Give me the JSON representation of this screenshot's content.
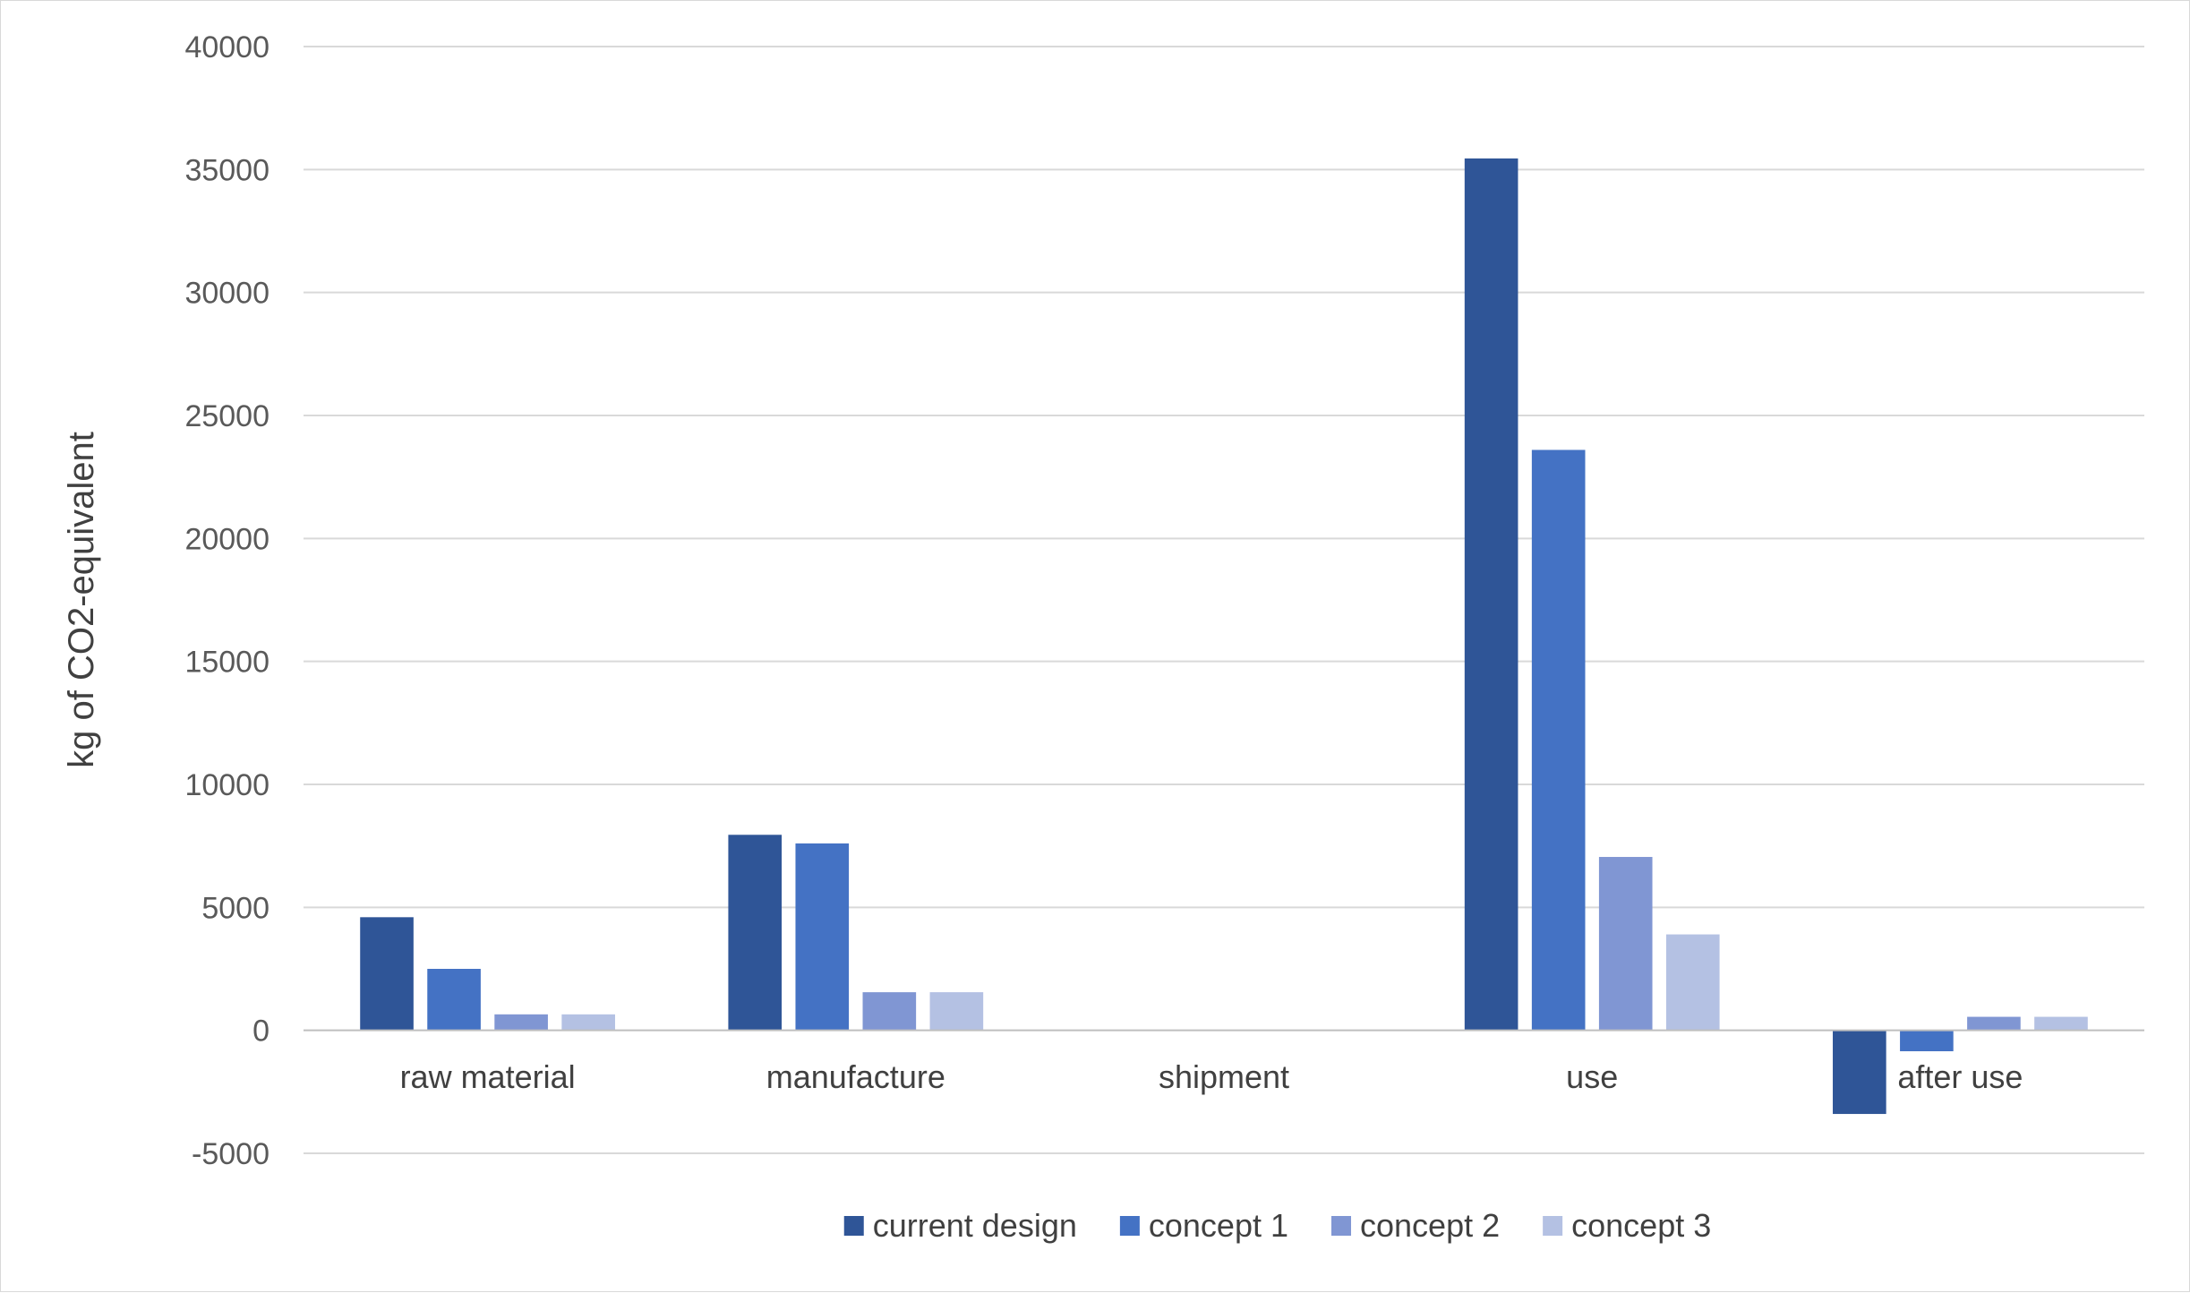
{
  "chart_data": {
    "type": "bar",
    "title": "",
    "xlabel": "",
    "ylabel": "kg of CO2-equivalent",
    "ylim": [
      -5000,
      40000
    ],
    "yticks": [
      -5000,
      0,
      5000,
      10000,
      15000,
      20000,
      25000,
      30000,
      35000,
      40000
    ],
    "grid": true,
    "legend_position": "bottom",
    "categories": [
      "raw material",
      "manufacture",
      "shipment",
      "use",
      "after use"
    ],
    "series": [
      {
        "name": "current design",
        "color": "#2f5597",
        "values": [
          4600,
          7950,
          0,
          35450,
          -3400
        ]
      },
      {
        "name": "concept 1",
        "color": "#4472c4",
        "values": [
          2500,
          7600,
          0,
          23600,
          -850
        ]
      },
      {
        "name": "concept 2",
        "color": "#8096d3",
        "values": [
          650,
          1550,
          0,
          7050,
          550
        ]
      },
      {
        "name": "concept 3",
        "color": "#b4c1e3",
        "values": [
          650,
          1550,
          0,
          3900,
          550
        ]
      }
    ]
  }
}
